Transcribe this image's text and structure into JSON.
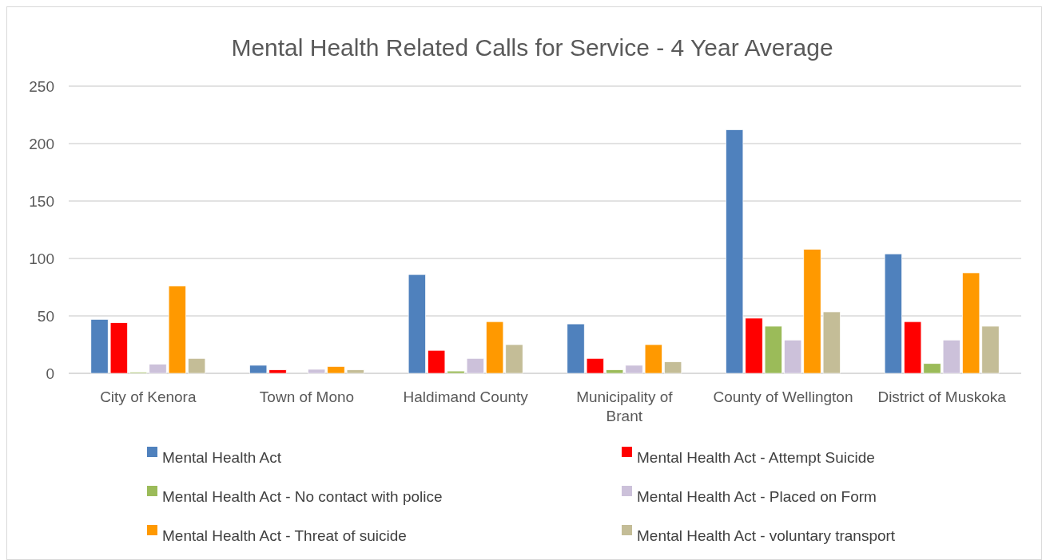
{
  "chart_data": {
    "type": "bar",
    "title": "Mental Health Related Calls for Service - 4 Year Average",
    "categories": [
      "City of Kenora",
      "Town of Mono",
      "Haldimand County",
      "Municipality of Brant",
      "County of Wellington",
      "District of Muskoka"
    ],
    "series": [
      {
        "name": "Mental Health Act",
        "color": "#4f81bd",
        "values": [
          47,
          7,
          86,
          43,
          212,
          104
        ]
      },
      {
        "name": "Mental Health Act - Attempt Suicide",
        "color": "#ff0000",
        "values": [
          44,
          3,
          20,
          13,
          48,
          45
        ]
      },
      {
        "name": "Mental Health Act - No contact with police",
        "color": "#9bbb59",
        "values": [
          1,
          0,
          2,
          3,
          41,
          8.5
        ]
      },
      {
        "name": "Mental Health Act - Placed on Form",
        "color": "#ccc1da",
        "values": [
          8,
          3.5,
          13,
          7,
          29,
          29
        ]
      },
      {
        "name": "Mental Health Act - Threat of suicide",
        "color": "#ff9900",
        "values": [
          76,
          6,
          45,
          25,
          108,
          87.5
        ]
      },
      {
        "name": "Mental Health Act - voluntary transport",
        "color": "#c4bd97",
        "values": [
          13,
          3,
          25,
          10,
          53.5,
          41
        ]
      }
    ],
    "ylim": [
      0,
      250
    ],
    "yticks": [
      0,
      50,
      100,
      150,
      200,
      250
    ],
    "grid": "y",
    "legend": "bottom"
  }
}
